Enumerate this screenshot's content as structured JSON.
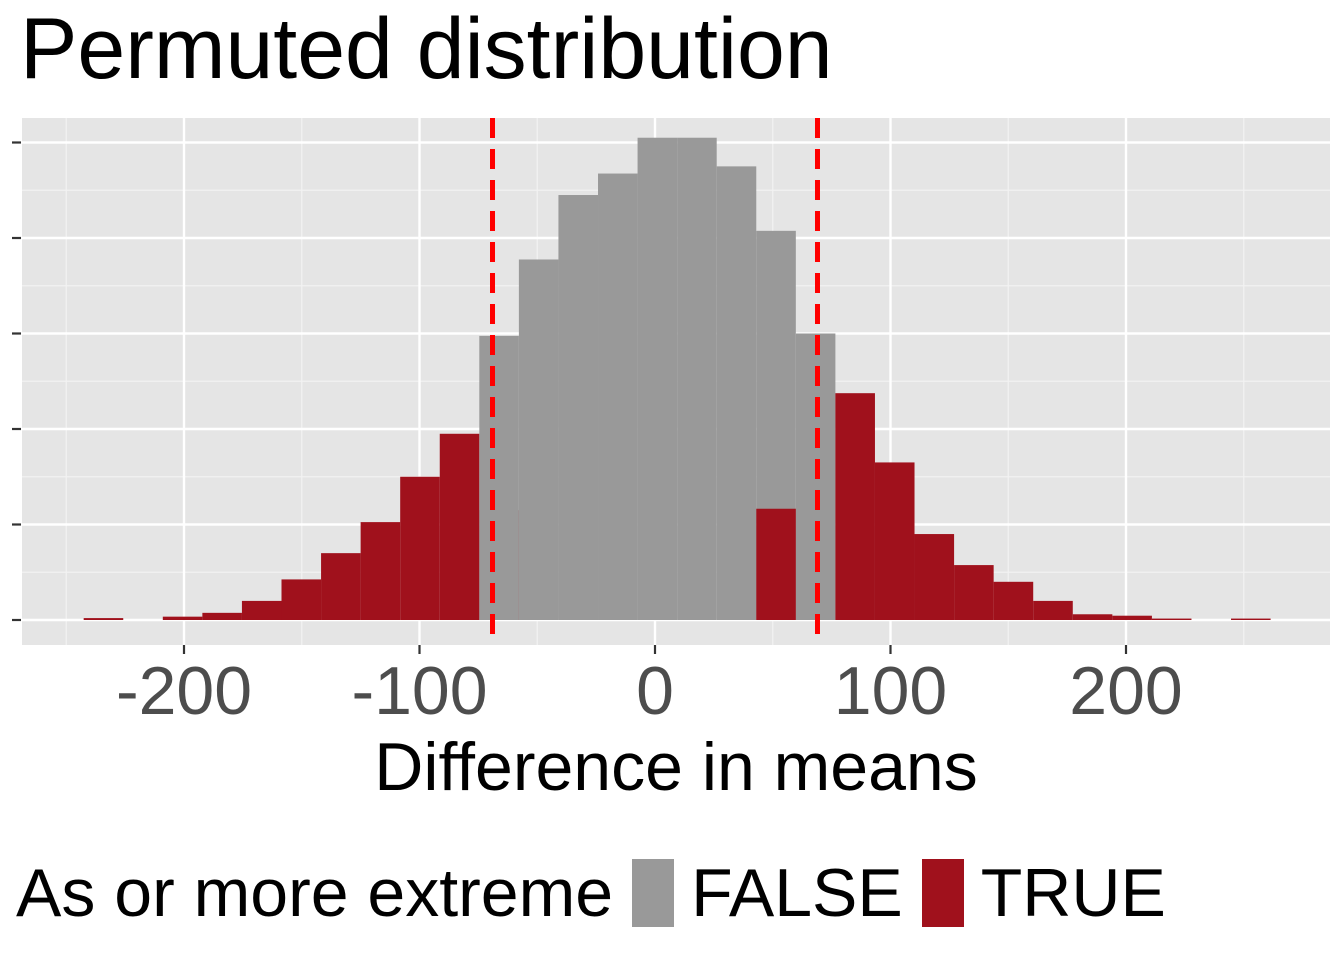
{
  "chart_data": {
    "type": "bar",
    "title": "Permuted distribution",
    "xlabel": "Difference in means",
    "ylabel": "",
    "xlim": [
      -265,
      285
    ],
    "ylim": [
      0,
      100
    ],
    "x_ticks": [
      -200,
      -100,
      0,
      100,
      200
    ],
    "x_tick_labels": [
      "-200",
      "-100",
      "0",
      "100",
      "200"
    ],
    "y_tick_labels_shown": false,
    "bin_width": 16.8,
    "grid": true,
    "legend": {
      "title": "As or more extreme",
      "position": "bottom",
      "entries": [
        {
          "label": "FALSE",
          "color": "#999999"
        },
        {
          "label": "TRUE",
          "color": "#a0111c"
        }
      ]
    },
    "critical_lines": {
      "values": [
        -69,
        69
      ],
      "color": "#ff0000",
      "style": "dashed"
    },
    "bins": [
      {
        "x": -234.2,
        "count": 0.4,
        "extreme": true
      },
      {
        "x": -217.4,
        "count": 0,
        "extreme": true
      },
      {
        "x": -200.6,
        "count": 0.7,
        "extreme": true
      },
      {
        "x": -183.8,
        "count": 1.5,
        "extreme": true
      },
      {
        "x": -167.0,
        "count": 4,
        "extreme": true
      },
      {
        "x": -150.2,
        "count": 8.5,
        "extreme": true
      },
      {
        "x": -133.4,
        "count": 14,
        "extreme": true
      },
      {
        "x": -116.6,
        "count": 20.5,
        "extreme": true
      },
      {
        "x": -99.8,
        "count": 30,
        "extreme": true
      },
      {
        "x": -83.0,
        "count": 39,
        "extreme": true
      },
      {
        "x": -66.2,
        "count": 23,
        "extreme": true
      },
      {
        "x": -66.2,
        "count": 59.5,
        "extreme": false
      },
      {
        "x": -49.4,
        "count": 75.5,
        "extreme": false
      },
      {
        "x": -32.6,
        "count": 89,
        "extreme": false
      },
      {
        "x": -15.8,
        "count": 93.5,
        "extreme": false
      },
      {
        "x": 1.0,
        "count": 101,
        "extreme": false
      },
      {
        "x": 17.8,
        "count": 101,
        "extreme": false
      },
      {
        "x": 34.6,
        "count": 95,
        "extreme": false
      },
      {
        "x": 51.4,
        "count": 81.5,
        "extreme": false
      },
      {
        "x": 68.2,
        "count": 60,
        "extreme": false
      },
      {
        "x": 51.4,
        "count": 23.3,
        "extreme": true
      },
      {
        "x": 68.2,
        "count": 0,
        "extreme": true
      },
      {
        "x": 85.0,
        "count": 47.5,
        "extreme": true
      },
      {
        "x": 101.8,
        "count": 33,
        "extreme": true
      },
      {
        "x": 118.6,
        "count": 18,
        "extreme": true
      },
      {
        "x": 135.4,
        "count": 11.5,
        "extreme": true
      },
      {
        "x": 152.2,
        "count": 8,
        "extreme": true
      },
      {
        "x": 169.0,
        "count": 4,
        "extreme": true
      },
      {
        "x": 185.8,
        "count": 1.2,
        "extreme": true
      },
      {
        "x": 202.6,
        "count": 0.9,
        "extreme": true
      },
      {
        "x": 219.4,
        "count": 0.3,
        "extreme": true
      },
      {
        "x": 236.2,
        "count": 0,
        "extreme": true
      },
      {
        "x": 253.0,
        "count": 0.3,
        "extreme": true
      }
    ]
  }
}
